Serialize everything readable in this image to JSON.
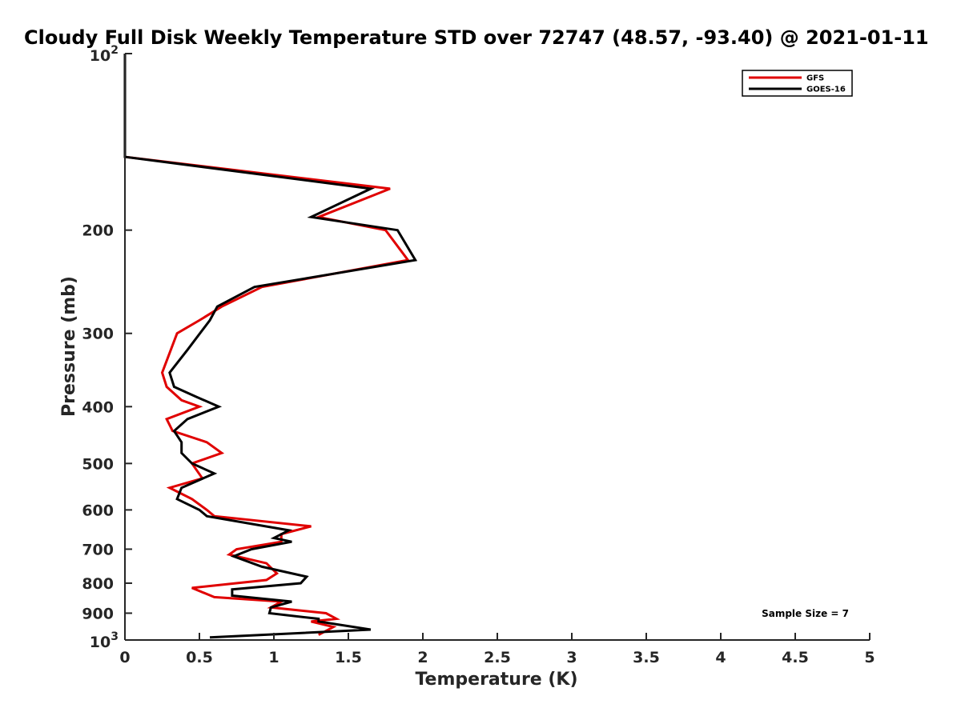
{
  "chart_data": {
    "type": "line",
    "title": "Cloudy Full Disk Weekly Temperature STD over 72747 (48.57, -93.40) @ 2021-01-11",
    "xlabel": "Temperature (K)",
    "ylabel": "Pressure (mb)",
    "xlim": [
      0,
      5
    ],
    "ylim": [
      1000,
      100
    ],
    "y_scale": "log",
    "y_reversed": true,
    "grid": false,
    "legend_position": "top-right",
    "x_ticks": [
      0,
      0.5,
      1,
      1.5,
      2,
      2.5,
      3,
      3.5,
      4,
      4.5,
      5
    ],
    "x_tick_labels": [
      "0",
      "0.5",
      "1",
      "1.5",
      "2",
      "2.5",
      "3",
      "3.5",
      "4",
      "4.5",
      "5"
    ],
    "y_ticks": [
      200,
      300,
      400,
      500,
      600,
      700,
      800,
      900
    ],
    "y_tick_labels": [
      "200",
      "300",
      "400",
      "500",
      "600",
      "700",
      "800",
      "900"
    ],
    "y_decade_ticks": [
      {
        "value": 100,
        "base": "10",
        "exp": "2"
      },
      {
        "value": 1000,
        "base": "10",
        "exp": "3"
      }
    ],
    "annotation": "Sample Size = 7",
    "series": [
      {
        "name": "GFS",
        "color": "#e00000",
        "points": [
          [
            0,
            100
          ],
          [
            0,
            150
          ],
          [
            1.78,
            170
          ],
          [
            1.3,
            190
          ],
          [
            1.75,
            200
          ],
          [
            1.9,
            225
          ],
          [
            0.92,
            250
          ],
          [
            0.65,
            270
          ],
          [
            0.5,
            285
          ],
          [
            0.35,
            300
          ],
          [
            0.25,
            350
          ],
          [
            0.28,
            370
          ],
          [
            0.38,
            390
          ],
          [
            0.5,
            400
          ],
          [
            0.28,
            420
          ],
          [
            0.32,
            440
          ],
          [
            0.55,
            460
          ],
          [
            0.65,
            480
          ],
          [
            0.45,
            500
          ],
          [
            0.52,
            530
          ],
          [
            0.3,
            550
          ],
          [
            0.45,
            575
          ],
          [
            0.55,
            600
          ],
          [
            0.6,
            615
          ],
          [
            1.25,
            640
          ],
          [
            1.05,
            660
          ],
          [
            1.05,
            680
          ],
          [
            0.75,
            700
          ],
          [
            0.7,
            715
          ],
          [
            0.95,
            740
          ],
          [
            1.02,
            770
          ],
          [
            0.95,
            790
          ],
          [
            0.45,
            815
          ],
          [
            0.6,
            845
          ],
          [
            1.05,
            860
          ],
          [
            0.98,
            880
          ],
          [
            1.35,
            900
          ],
          [
            1.42,
            920
          ],
          [
            1.25,
            930
          ],
          [
            1.4,
            950
          ],
          [
            1.3,
            980
          ]
        ]
      },
      {
        "name": "GOES-16",
        "color": "#000000",
        "points": [
          [
            0,
            100
          ],
          [
            0,
            150
          ],
          [
            1.65,
            170
          ],
          [
            1.25,
            190
          ],
          [
            1.83,
            200
          ],
          [
            1.95,
            225
          ],
          [
            0.87,
            250
          ],
          [
            0.62,
            270
          ],
          [
            0.57,
            285
          ],
          [
            0.42,
            320
          ],
          [
            0.3,
            350
          ],
          [
            0.33,
            370
          ],
          [
            0.48,
            385
          ],
          [
            0.63,
            400
          ],
          [
            0.42,
            420
          ],
          [
            0.33,
            440
          ],
          [
            0.38,
            460
          ],
          [
            0.38,
            480
          ],
          [
            0.45,
            500
          ],
          [
            0.6,
            520
          ],
          [
            0.38,
            550
          ],
          [
            0.35,
            575
          ],
          [
            0.5,
            600
          ],
          [
            0.55,
            615
          ],
          [
            1.1,
            650
          ],
          [
            1.0,
            670
          ],
          [
            1.12,
            680
          ],
          [
            0.85,
            700
          ],
          [
            0.73,
            720
          ],
          [
            0.92,
            750
          ],
          [
            1.22,
            780
          ],
          [
            1.18,
            800
          ],
          [
            0.72,
            820
          ],
          [
            0.72,
            840
          ],
          [
            1.12,
            860
          ],
          [
            0.98,
            880
          ],
          [
            0.97,
            900
          ],
          [
            1.3,
            920
          ],
          [
            1.3,
            930
          ],
          [
            1.65,
            960
          ],
          [
            0.57,
            990
          ]
        ]
      }
    ]
  }
}
